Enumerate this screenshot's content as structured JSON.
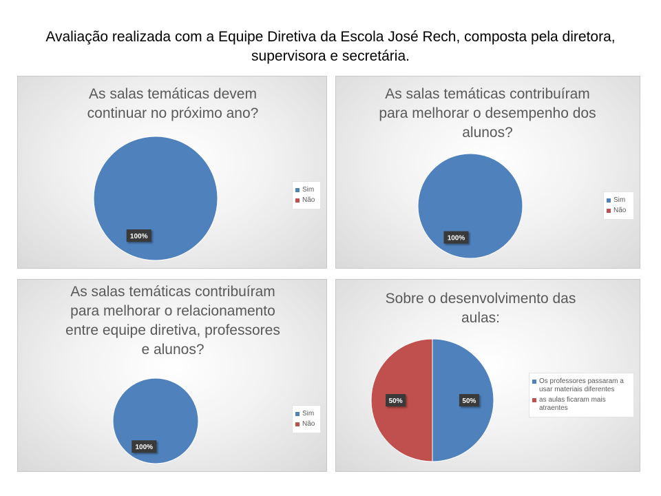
{
  "page": {
    "title": "Avaliação realizada com a Equipe Diretiva da Escola José Rech, composta pela diretora, supervisora e secretária."
  },
  "colors": {
    "series_a": "#4f81bd",
    "series_b": "#c0504d",
    "label_bg": "#3a3a3a",
    "label_text": "#ffffff"
  },
  "chart_data": [
    {
      "type": "pie",
      "title": "As salas temáticas devem continuar no próximo ano?",
      "categories": [
        "Sim",
        "Não"
      ],
      "values": [
        100,
        0
      ],
      "data_labels": [
        "100%",
        ""
      ],
      "legend_position": "right"
    },
    {
      "type": "pie",
      "title": "As salas temáticas contribuíram para melhorar o desempenho dos alunos?",
      "categories": [
        "Sim",
        "Não"
      ],
      "values": [
        100,
        0
      ],
      "data_labels": [
        "100%",
        ""
      ],
      "legend_position": "right"
    },
    {
      "type": "pie",
      "title": "As salas temáticas contribuíram para melhorar o relacionamento entre equipe diretiva, professores e alunos?",
      "categories": [
        "Sim",
        "Não"
      ],
      "values": [
        100,
        0
      ],
      "data_labels": [
        "100%",
        ""
      ],
      "legend_position": "right"
    },
    {
      "type": "pie",
      "title": "Sobre o desenvolvimento das aulas:",
      "categories": [
        "Os professores passaram a usar materiais diferentes",
        "as aulas ficaram mais atraentes"
      ],
      "values": [
        50,
        50
      ],
      "data_labels": [
        "50%",
        "50%"
      ],
      "legend_position": "right"
    }
  ]
}
